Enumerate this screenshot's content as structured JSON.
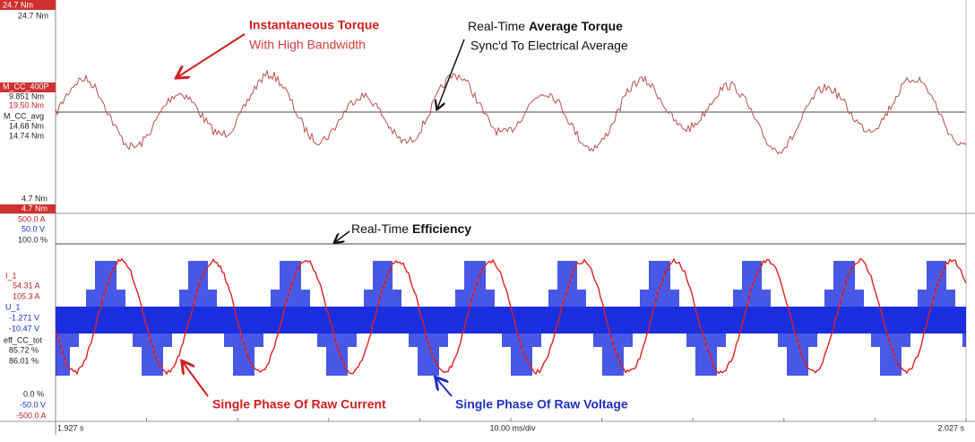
{
  "top_panel": {
    "labels": [
      "24.7 Nm",
      "24.7 Nm",
      "M_CC_400P",
      "9.851 Nm",
      "19.50 Nm",
      "M_CC_avg",
      "14.68 Nm",
      "14.74 Nm",
      "4.7 Nm",
      "4.7 Nm"
    ]
  },
  "bottom_panel": {
    "labels": [
      "500.0 A",
      "50.0 V",
      "100.0 %",
      "I_1",
      "54.31 A",
      "105.3 A",
      "U_1",
      "-1.271 V",
      "-10.47 V",
      "eff_CC_tot",
      "85.72 %",
      "86.01 %",
      "0.0 %",
      "-50.0 V",
      "-500.0 A"
    ]
  },
  "time_axis": {
    "start": "1.927 s",
    "scale": "10.00 ms/div",
    "end": "2.027 s"
  },
  "annotations": {
    "torque_title": "Instantaneous Torque",
    "torque_sub": "With High Bandwidth",
    "avg_prefix": "Real-Time ",
    "avg_bold": "Average Torque",
    "avg_sub": "Sync'd To Electrical Average",
    "eff_prefix": "Real-Time ",
    "eff_bold": "Efficiency",
    "current": "Single Phase Of Raw Current",
    "voltage": "Single Phase Of Raw Voltage"
  }
}
